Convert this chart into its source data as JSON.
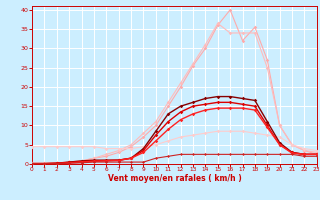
{
  "x": [
    0,
    1,
    2,
    3,
    4,
    5,
    6,
    7,
    8,
    9,
    10,
    11,
    12,
    13,
    14,
    15,
    16,
    17,
    18,
    19,
    20,
    21,
    22,
    23
  ],
  "series": [
    {
      "name": "light_pink_top",
      "color": "#ffaaaa",
      "y": [
        0.2,
        0.2,
        0.3,
        0.5,
        0.8,
        1.5,
        2.0,
        3.0,
        4.5,
        7.0,
        10.0,
        15.0,
        20.0,
        25.5,
        30.0,
        36.0,
        40.0,
        32.0,
        35.5,
        27.0,
        10.0,
        5.0,
        3.5,
        2.5
      ],
      "marker": "D",
      "markersize": 1.8,
      "linewidth": 0.8
    },
    {
      "name": "light_pink_mid",
      "color": "#ffbbbb",
      "y": [
        0.2,
        0.2,
        0.3,
        0.5,
        0.8,
        1.5,
        2.5,
        3.5,
        5.0,
        8.0,
        11.0,
        16.0,
        21.0,
        26.0,
        31.0,
        36.5,
        34.0,
        34.0,
        34.0,
        25.0,
        10.0,
        5.0,
        3.5,
        3.0
      ],
      "marker": "D",
      "markersize": 1.8,
      "linewidth": 0.8
    },
    {
      "name": "pink_flat",
      "color": "#ffcccc",
      "y": [
        4.5,
        4.5,
        4.5,
        4.5,
        4.5,
        4.5,
        4.0,
        4.0,
        4.0,
        4.5,
        5.0,
        6.0,
        7.0,
        7.5,
        8.0,
        8.5,
        8.5,
        8.5,
        8.0,
        7.5,
        7.0,
        5.0,
        4.0,
        3.5
      ],
      "marker": "D",
      "markersize": 1.8,
      "linewidth": 0.8
    },
    {
      "name": "dark_red_top",
      "color": "#880000",
      "y": [
        0.1,
        0.1,
        0.2,
        0.5,
        0.8,
        1.0,
        1.0,
        1.0,
        1.5,
        4.0,
        8.5,
        13.0,
        15.0,
        16.0,
        17.0,
        17.5,
        17.5,
        17.0,
        16.5,
        11.0,
        5.5,
        3.0,
        2.5,
        2.5
      ],
      "marker": "D",
      "markersize": 1.8,
      "linewidth": 1.0
    },
    {
      "name": "red_line1",
      "color": "#dd0000",
      "y": [
        0.1,
        0.1,
        0.2,
        0.4,
        0.6,
        0.8,
        0.9,
        1.0,
        1.5,
        3.5,
        7.5,
        11.0,
        13.5,
        15.0,
        15.5,
        16.0,
        16.0,
        15.5,
        15.0,
        10.0,
        5.0,
        3.0,
        2.5,
        2.5
      ],
      "marker": "D",
      "markersize": 1.8,
      "linewidth": 1.0
    },
    {
      "name": "red_line2",
      "color": "#ff2222",
      "y": [
        0.1,
        0.1,
        0.1,
        0.3,
        0.5,
        0.7,
        0.8,
        0.9,
        1.5,
        3.0,
        6.0,
        9.0,
        11.5,
        13.0,
        14.0,
        14.5,
        14.5,
        14.5,
        14.0,
        9.5,
        5.0,
        2.8,
        2.5,
        2.5
      ],
      "marker": "D",
      "markersize": 1.8,
      "linewidth": 1.0
    },
    {
      "name": "red_flat_low",
      "color": "#cc2222",
      "y": [
        0.1,
        0.1,
        0.1,
        0.2,
        0.3,
        0.5,
        0.5,
        0.5,
        0.5,
        0.5,
        1.5,
        2.0,
        2.5,
        2.5,
        2.5,
        2.5,
        2.5,
        2.5,
        2.5,
        2.5,
        2.5,
        2.5,
        2.0,
        2.0
      ],
      "marker": "D",
      "markersize": 1.5,
      "linewidth": 0.8
    }
  ],
  "xlim": [
    0,
    23
  ],
  "ylim": [
    0,
    41
  ],
  "yticks": [
    0,
    5,
    10,
    15,
    20,
    25,
    30,
    35,
    40
  ],
  "xticks": [
    0,
    1,
    2,
    3,
    4,
    5,
    6,
    7,
    8,
    9,
    10,
    11,
    12,
    13,
    14,
    15,
    16,
    17,
    18,
    19,
    20,
    21,
    22,
    23
  ],
  "xlabel": "Vent moyen/en rafales ( km/h )",
  "background_color": "#cceeff",
  "grid_color": "#aadddd",
  "tick_color": "#cc0000",
  "label_color": "#cc0000",
  "figsize": [
    3.2,
    2.0
  ],
  "dpi": 100
}
